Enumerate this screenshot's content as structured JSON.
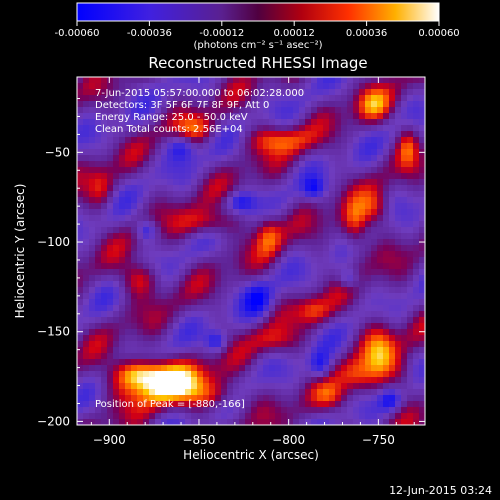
{
  "colorbar": {
    "tick_labels": [
      "-0.00060",
      "-0.00036",
      "-0.00012",
      "0.00012",
      "0.00036",
      "0.00060"
    ],
    "tick_values": [
      -0.0006,
      -0.00036,
      -0.00012,
      0.00012,
      0.00036,
      0.0006
    ],
    "range": [
      -0.0006,
      0.0006
    ],
    "unit_label": "(photons cm⁻² s⁻¹ asec⁻²)"
  },
  "chart_data": {
    "type": "heatmap",
    "title": "Reconstructed RHESSI Image",
    "xlabel": "Heliocentric X (arcsec)",
    "ylabel": "Heliocentric Y (arcsec)",
    "xlim": [
      -918,
      -724
    ],
    "ylim": [
      -202,
      -8
    ],
    "x_ticks": [
      -900,
      -850,
      -800,
      -750
    ],
    "x_tick_labels": [
      "−900",
      "−850",
      "−800",
      "−750"
    ],
    "y_ticks": [
      -50,
      -100,
      -150,
      -200
    ],
    "y_tick_labels": [
      "−50",
      "−100",
      "−150",
      "−200"
    ],
    "annotations": [
      "7-Jun-2015 05:57:00.000 to 06:02:28.000",
      "Detectors: 3F 5F 6F 7F 8F 9F, Att 0",
      "Energy Range: 25.0 - 50.0 keV",
      "Clean     Total counts: 2.56E+04"
    ],
    "peak_label": "Position of Peak = [-880,-166]",
    "peak_position": [
      -880,
      -166
    ],
    "colormap": [
      "#0000ff",
      "#7a3fd0",
      "#7a0070",
      "#ff0000",
      "#ffd800",
      "#ffffff"
    ]
  },
  "footer": {
    "timestamp": "12-Jun-2015 03:24"
  }
}
